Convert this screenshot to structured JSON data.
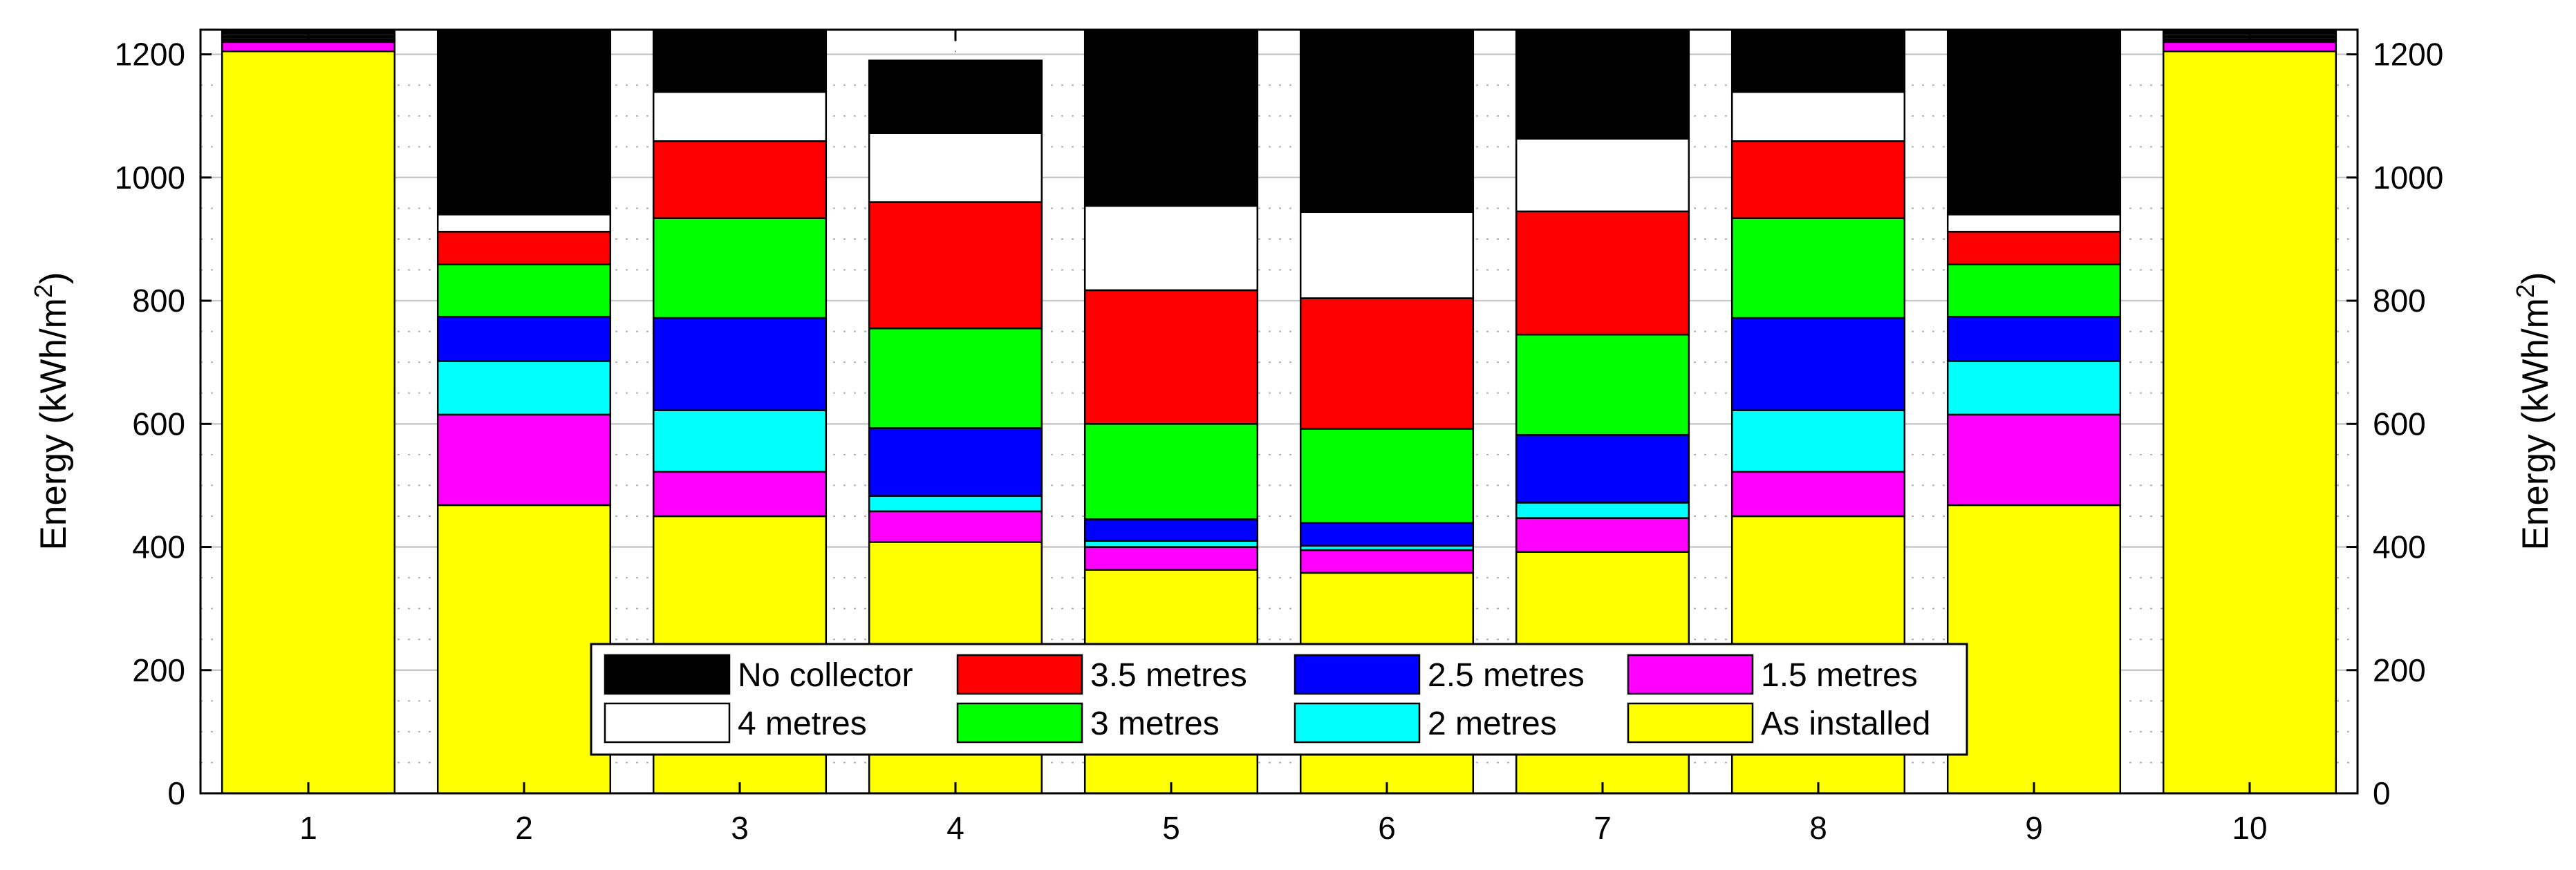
{
  "chart_data": {
    "type": "bar",
    "stacked": true,
    "categories": [
      "1",
      "2",
      "3",
      "4",
      "5",
      "6",
      "7",
      "8",
      "9",
      "10"
    ],
    "ylim": [
      0,
      1240
    ],
    "yticks": [
      0,
      200,
      400,
      600,
      800,
      1000,
      1200
    ],
    "ylabel_left": "Energy (kWh/m",
    "ylabel_right": "Energy (kWh/m",
    "ylabel_sup": "2",
    "ylabel_close": ")",
    "grid": true,
    "legend_position": "bottom-center",
    "series": [
      {
        "name": "As installed",
        "color": "#ffff00",
        "values": [
          1205,
          468,
          450,
          408,
          363,
          358,
          392,
          450,
          468,
          1205
        ]
      },
      {
        "name": "1.5 metres",
        "color": "#ff00ff",
        "values": [
          15,
          147,
          72,
          50,
          37,
          37,
          55,
          72,
          147,
          15
        ]
      },
      {
        "name": "2 metres",
        "color": "#00ffff",
        "values": [
          3,
          87,
          100,
          25,
          10,
          7,
          25,
          100,
          87,
          3
        ]
      },
      {
        "name": "2.5 metres",
        "color": "#0000ff",
        "values": [
          2,
          72,
          150,
          110,
          35,
          37,
          110,
          150,
          72,
          2
        ]
      },
      {
        "name": "3 metres",
        "color": "#00ff00",
        "values": [
          3,
          85,
          162,
          162,
          155,
          153,
          163,
          162,
          85,
          3
        ]
      },
      {
        "name": "3.5 metres",
        "color": "#ff0000",
        "values": [
          2,
          53,
          125,
          205,
          217,
          212,
          200,
          125,
          53,
          2
        ]
      },
      {
        "name": "4 metres",
        "color": "#ffffff",
        "values": [
          3,
          28,
          80,
          112,
          137,
          140,
          118,
          80,
          28,
          3
        ]
      },
      {
        "name": "No collector",
        "color": "#000000",
        "values": [
          7,
          300,
          101,
          118,
          286,
          296,
          177,
          101,
          300,
          7
        ]
      }
    ],
    "legend_order": [
      "No collector",
      "3.5 metres",
      "2.5 metres",
      "1.5 metres",
      "4 metres",
      "3 metres",
      "2 metres",
      "As installed"
    ]
  }
}
